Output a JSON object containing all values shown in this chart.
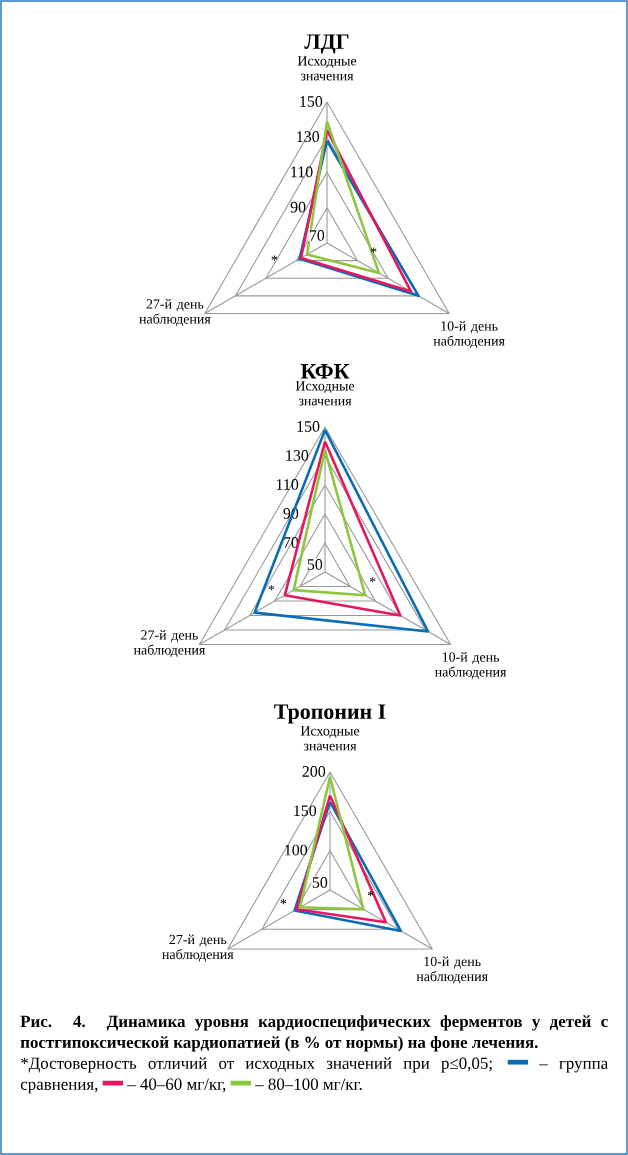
{
  "chart_data": [
    {
      "type": "radar",
      "title": "ЛДГ",
      "categories": [
        "Исходные значения",
        "10-й день наблюдения",
        "27-й день наблюдения"
      ],
      "ylim": [
        70,
        150
      ],
      "yticks": [
        70,
        90,
        110,
        130,
        150
      ],
      "series": [
        {
          "color": "#0a6db3",
          "values": [
            128,
            130,
            88
          ]
        },
        {
          "color": "#e5175f",
          "values": [
            134,
            125,
            87
          ]
        },
        {
          "color": "#8dc63f",
          "values": [
            139,
            104,
            83
          ]
        }
      ],
      "annotations": [
        "*",
        "*"
      ]
    },
    {
      "type": "radar",
      "title": "КФК",
      "categories": [
        "Исходные значения",
        "10-й день наблюдения",
        "27-й день наблюдения"
      ],
      "ylim": [
        50,
        150
      ],
      "yticks": [
        50,
        70,
        90,
        110,
        130,
        150
      ],
      "series": [
        {
          "color": "#0a6db3",
          "values": [
            148,
            132,
            106
          ]
        },
        {
          "color": "#e5175f",
          "values": [
            140,
            110,
            82
          ]
        },
        {
          "color": "#8dc63f",
          "values": [
            134,
            82,
            75
          ]
        }
      ],
      "annotations": [
        "*",
        "*"
      ]
    },
    {
      "type": "radar",
      "title": "Тропонин I",
      "categories": [
        "Исходные значения",
        "10-й день наблюдения",
        "27-й день наблюдения"
      ],
      "ylim": [
        50,
        200
      ],
      "yticks": [
        50,
        100,
        150,
        200
      ],
      "legend": "bottom",
      "series": [
        {
          "name": "– группа сравнения,",
          "color": "#0a6db3",
          "values": [
            162,
            154,
            102
          ]
        },
        {
          "name": "– 40–60 мг/кг,",
          "color": "#e5175f",
          "values": [
            170,
            132,
            99
          ]
        },
        {
          "name": "– 80–100 мг/кг.",
          "color": "#8dc63f",
          "values": [
            194,
            99,
            94
          ]
        }
      ],
      "annotations": [
        "*",
        "*"
      ]
    },
    {
      "type": "other",
      "title": "Рис. 4. Динамика уровня кардиоспецифических ферментов у детей с постгипоксической кардиопатией (в % от нормы) на фоне лечения.",
      "annotations": [
        "*Достоверность отличий от исходных значений при p≤0,05;"
      ]
    }
  ]
}
